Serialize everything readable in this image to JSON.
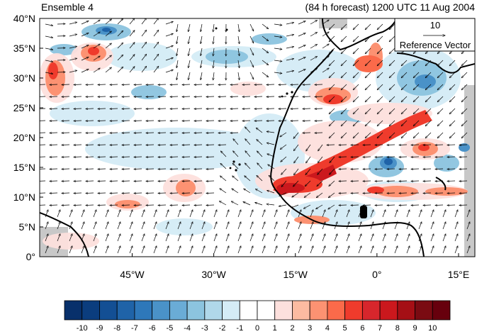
{
  "header": {
    "left_title": "Ensemble 4",
    "right_title": "(84 h forecast) 1200 UTC 11 Aug 2004"
  },
  "map": {
    "lat_ticks": [
      "0°",
      "5°N",
      "10°N",
      "15°N",
      "20°N",
      "25°N",
      "30°N",
      "35°N",
      "40°N"
    ],
    "lon_ticks": [
      "45°W",
      "30°W",
      "15°W",
      "0°",
      "15°E"
    ],
    "lat_range": [
      0,
      40
    ],
    "lon_range": [
      -62,
      18
    ]
  },
  "reference_vector": {
    "magnitude": "10",
    "label": "Reference Vector"
  },
  "colorbar": {
    "labels": [
      "-10",
      "-9",
      "-8",
      "-7",
      "-6",
      "-5",
      "-4",
      "-3",
      "-2",
      "-1",
      "0",
      "1",
      "2",
      "3",
      "4",
      "5",
      "6",
      "7",
      "8",
      "9",
      "10"
    ],
    "colors": [
      "#08306b",
      "#0b3d7e",
      "#134f94",
      "#1f63a8",
      "#2e78ba",
      "#4a92c8",
      "#6aacd6",
      "#8cc4df",
      "#b0d8ea",
      "#d4ecf6",
      "#ffffff",
      "#ffffff",
      "#fde0dd",
      "#fcbba1",
      "#fc9272",
      "#fb6a4a",
      "#ef3b2c",
      "#d7262c",
      "#cb181d",
      "#a50f15",
      "#7a0b12",
      "#67000d"
    ]
  }
}
